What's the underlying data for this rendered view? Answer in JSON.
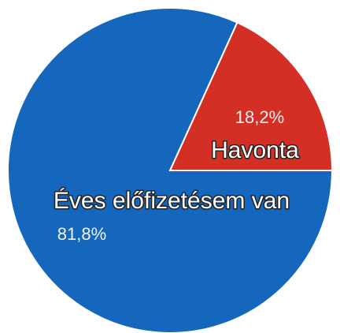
{
  "chart_data": {
    "type": "pie",
    "slices": [
      {
        "label": "Havonta",
        "value": 18.2,
        "value_label": "18,2%",
        "color": "#d42f24"
      },
      {
        "label": "Éves előfizetésem van",
        "value": 81.8,
        "value_label": "81,8%",
        "color": "#1567bd"
      }
    ],
    "start_angle_deg": 0,
    "direction": "counter-clockwise",
    "legend": "none",
    "title": ""
  }
}
